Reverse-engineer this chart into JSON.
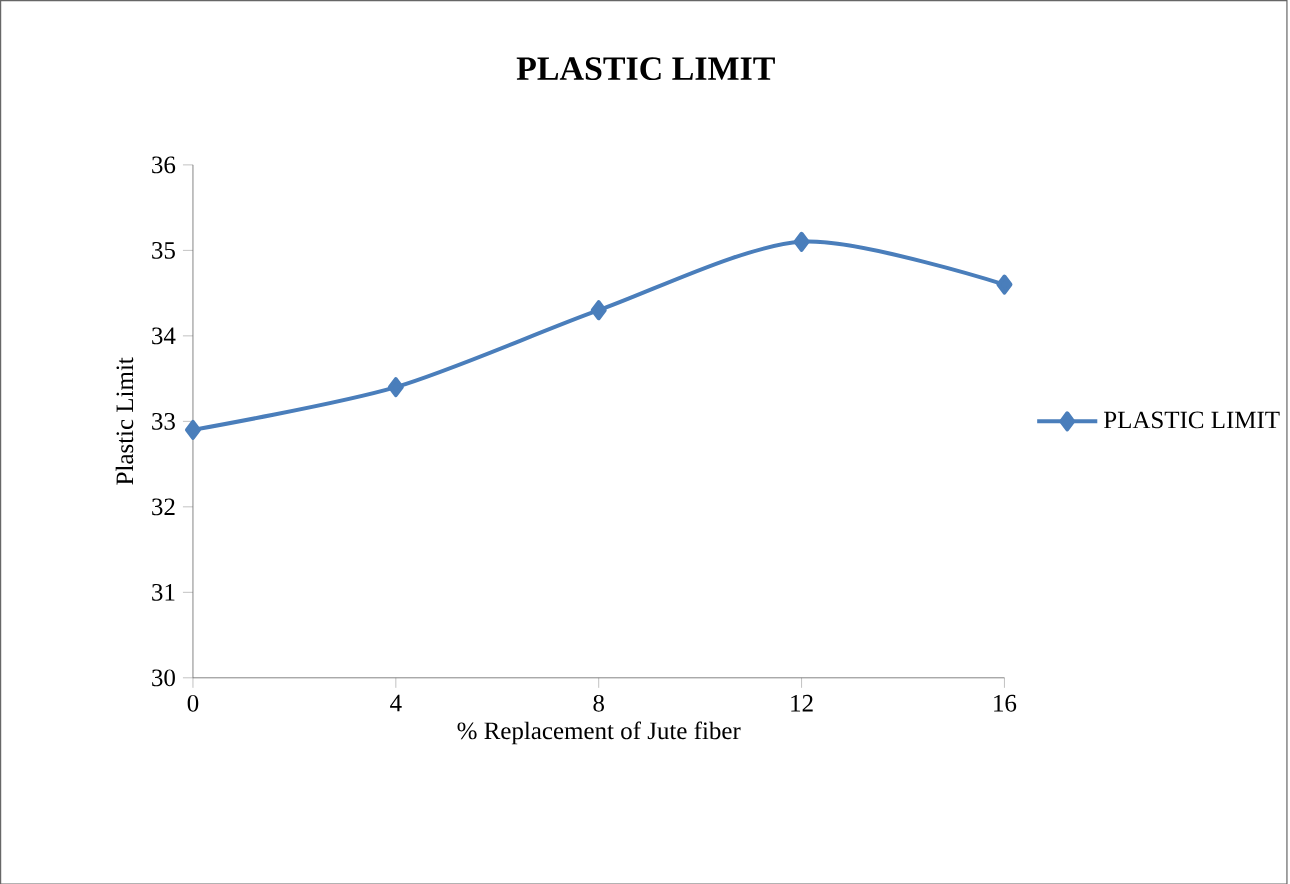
{
  "chart_data": {
    "type": "line",
    "title": "PLASTIC LIMIT",
    "xlabel": "% Replacement of Jute fiber",
    "ylabel": "Plastic Limit",
    "x": [
      0,
      4,
      8,
      12,
      16
    ],
    "series": [
      {
        "name": "PLASTIC LIMIT",
        "color": "#4a7ebb",
        "values": [
          32.9,
          33.4,
          34.3,
          35.1,
          34.6
        ]
      }
    ],
    "xlim": [
      0,
      16
    ],
    "xticks": [
      0,
      4,
      8,
      12,
      16
    ],
    "ylim": [
      30,
      36
    ],
    "yticks": [
      30,
      31,
      32,
      33,
      34,
      35,
      36
    ],
    "legend": "right",
    "marker": "diamond",
    "line_style": "solid"
  }
}
